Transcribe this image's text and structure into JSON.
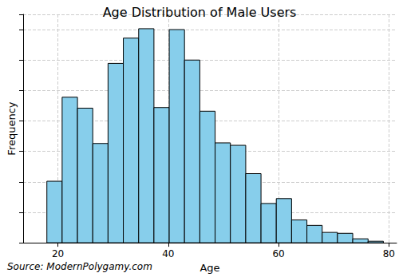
{
  "chart_data": {
    "type": "histogram",
    "title": "Age Distribution of Male Users",
    "x_label": "Age",
    "y_label": "Frequency",
    "source": "Source: ModernPolygamy.com",
    "bins": [
      18,
      20.77,
      23.55,
      26.32,
      29.09,
      31.86,
      34.64,
      37.41,
      40.18,
      42.95,
      45.73,
      48.5,
      51.27,
      54.05,
      56.82,
      59.59,
      62.36,
      65.14,
      67.91,
      70.68,
      73.45,
      76.23,
      79
    ],
    "values": [
      2.02,
      4.78,
      4.42,
      3.26,
      5.89,
      6.72,
      7.03,
      4.44,
      7.0,
      6.0,
      4.32,
      3.28,
      3.2,
      2.27,
      1.29,
      1.45,
      0.75,
      0.57,
      0.34,
      0.31,
      0.13,
      0.05
    ],
    "color": "#87ceeb",
    "xlim": [
      13.7,
      81.4
    ],
    "xticks": [
      20,
      40,
      60,
      80
    ],
    "ylim": [
      0,
      7.5
    ],
    "yticks": [
      0,
      1,
      2,
      3,
      4,
      5,
      6,
      7
    ],
    "grid": true,
    "tick_labels": "x"
  }
}
